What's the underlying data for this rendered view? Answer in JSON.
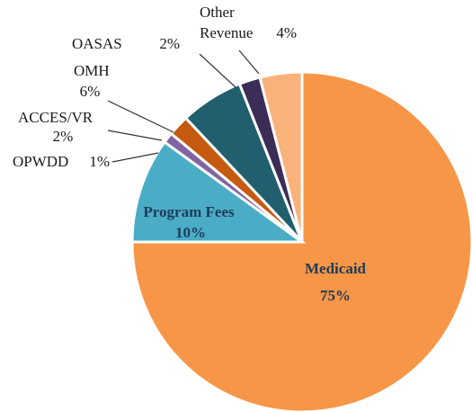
{
  "chart_data": {
    "type": "pie",
    "categories": [
      "Medicaid",
      "Program Fees",
      "OPWDD",
      "ACCES/VR",
      "OMH",
      "OASAS",
      "Other Revenue"
    ],
    "values": [
      75,
      10,
      1,
      2,
      6,
      2,
      4
    ],
    "value_labels": [
      "75%",
      "10%",
      "1%",
      "2%",
      "6%",
      "2%",
      "4%"
    ],
    "colors": [
      "#f79646",
      "#4bacc6",
      "#8064a2",
      "#c55a11",
      "#215f6f",
      "#3b2d55",
      "#fab27b"
    ]
  }
}
